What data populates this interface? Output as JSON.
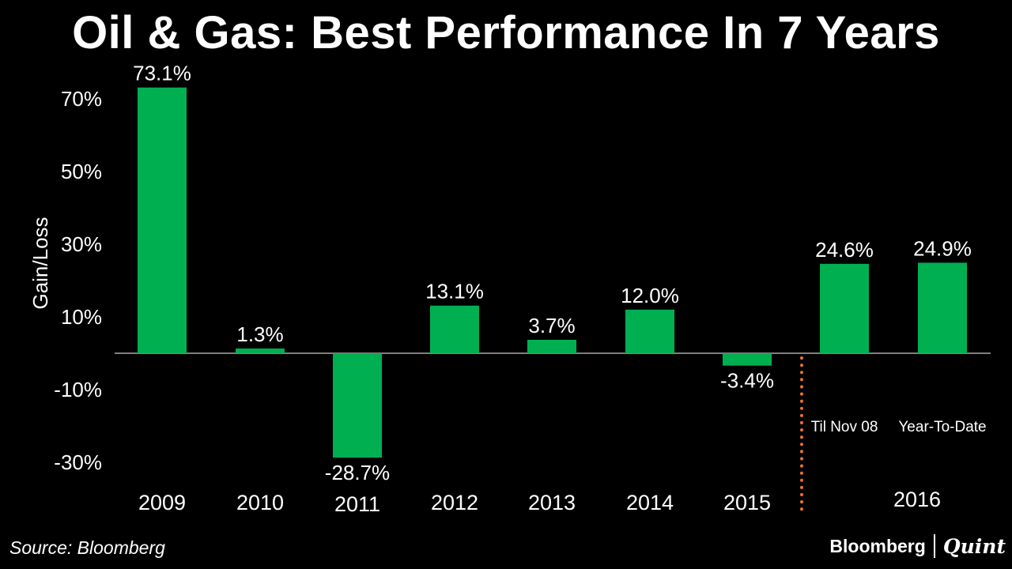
{
  "chart_data": {
    "type": "bar",
    "title": "Oil & Gas: Best Performance In 7 Years",
    "ylabel": "Gain/Loss",
    "xlabel": "",
    "ylim": [
      -33,
      76
    ],
    "yticks": [
      -30,
      -10,
      10,
      30,
      50,
      70
    ],
    "ytick_labels": [
      "-30%",
      "-10%",
      "10%",
      "30%",
      "50%",
      "70%"
    ],
    "categories": [
      "2009",
      "2010",
      "2011",
      "2012",
      "2013",
      "2014",
      "2015",
      "Til Nov 08",
      "Year-To-Date"
    ],
    "values": [
      73.1,
      1.3,
      -28.7,
      13.1,
      3.7,
      12.0,
      -3.4,
      24.6,
      24.9
    ],
    "value_labels": [
      "73.1%",
      "1.3%",
      "-28.7%",
      "13.1%",
      "3.7%",
      "12.0%",
      "-3.4%",
      "24.6%",
      "24.9%"
    ],
    "group_label": "2016",
    "bar_color": "#00b050",
    "divider_color": "#e8703a",
    "grid": false,
    "legend": "none"
  },
  "footer": {
    "source": "Source: Bloomberg",
    "brand": "Bloomberg",
    "brand_partner": "Quint"
  }
}
